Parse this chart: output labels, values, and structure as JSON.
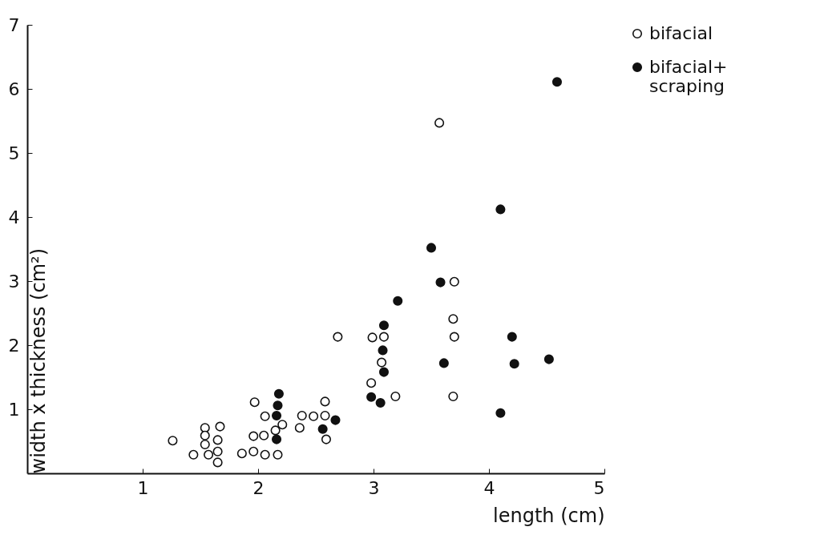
{
  "chart_data": {
    "type": "scatter",
    "xlabel": "length (cm)",
    "ylabel": "width x thickness (cm²)",
    "xlim": [
      0,
      5
    ],
    "ylim": [
      0,
      7
    ],
    "xticks": [
      1,
      2,
      3,
      4,
      5
    ],
    "yticks": [
      1,
      2,
      3,
      4,
      5,
      6,
      7
    ],
    "grid": false,
    "legend": "right",
    "series": [
      {
        "name": "bifacial",
        "color": "#ffffff",
        "x": [
          1.26,
          1.44,
          1.54,
          1.54,
          1.54,
          1.57,
          1.67,
          1.65,
          1.65,
          1.65,
          1.86,
          1.96,
          2.06,
          2.17,
          1.97,
          1.96,
          2.05,
          2.06,
          2.15,
          2.21,
          2.38,
          2.48,
          2.58,
          2.58,
          2.36,
          2.59,
          2.98,
          2.69,
          2.99,
          3.09,
          3.07,
          3.19,
          3.57,
          3.7,
          3.69,
          3.7,
          3.69
        ],
        "values": [
          0.51,
          0.29,
          0.71,
          0.59,
          0.45,
          0.29,
          0.73,
          0.52,
          0.34,
          0.17,
          0.31,
          0.34,
          0.29,
          0.29,
          1.11,
          0.58,
          0.59,
          0.89,
          0.67,
          0.76,
          0.9,
          0.89,
          0.9,
          1.12,
          0.71,
          0.53,
          1.41,
          2.13,
          2.12,
          2.13,
          1.73,
          1.2,
          5.47,
          2.99,
          2.41,
          2.13,
          1.2
        ]
      },
      {
        "name": "bifacial+ scraping",
        "color": "#111111",
        "x": [
          2.18,
          2.17,
          2.16,
          2.16,
          2.56,
          2.67,
          2.98,
          3.06,
          3.21,
          3.09,
          3.08,
          3.09,
          3.61,
          4.59,
          4.1,
          3.5,
          3.58,
          4.2,
          4.22,
          4.52,
          4.1
        ],
        "values": [
          1.24,
          1.06,
          0.9,
          0.53,
          0.69,
          0.83,
          1.19,
          1.1,
          2.69,
          2.31,
          1.92,
          1.58,
          1.72,
          6.11,
          4.12,
          3.52,
          2.98,
          2.13,
          1.71,
          1.78,
          0.94
        ]
      }
    ]
  }
}
